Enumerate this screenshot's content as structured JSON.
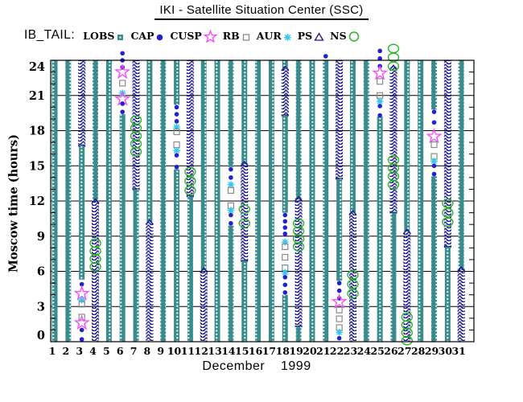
{
  "header": {
    "title": "IKI - Satellite Situation Center (SSC)"
  },
  "legend": {
    "label": "IB_TAIL:",
    "items": [
      {
        "name": "LOBS",
        "marker": "square-filled-small",
        "color": "#3a8c8c"
      },
      {
        "name": "CAP",
        "marker": "circle-filled",
        "color": "#2121cf"
      },
      {
        "name": "CUSP",
        "marker": "star-open",
        "color": "#f84ef8"
      },
      {
        "name": "RB",
        "marker": "square-open",
        "color": "#8a8a8a"
      },
      {
        "name": "AUR",
        "marker": "asterisk",
        "color": "#33c6ee"
      },
      {
        "name": "PS",
        "marker": "triangle-open",
        "color": "#16168c"
      },
      {
        "name": "NS",
        "marker": "circle-open",
        "color": "#28b428"
      }
    ]
  },
  "chart_data": {
    "type": "scatter",
    "title": "IKI - Satellite Situation Center (SSC)",
    "xlabel": "December    1999",
    "ylabel": "Moscow time (hours)",
    "ylim": [
      0,
      24
    ],
    "yticks": [
      0,
      3,
      6,
      9,
      12,
      15,
      18,
      21,
      24
    ],
    "xticks": [
      1,
      2,
      3,
      4,
      5,
      6,
      7,
      8,
      9,
      10,
      11,
      12,
      13,
      14,
      15,
      16,
      17,
      18,
      19,
      20,
      21,
      22,
      23,
      24,
      25,
      26,
      27,
      28,
      29,
      30,
      31
    ],
    "grid": "horizontal-3h",
    "legend_position": "top",
    "region_types": [
      "LOBS",
      "PS"
    ],
    "event_types": [
      "CAP",
      "CUSP",
      "RB",
      "AUR",
      "NS"
    ],
    "days": [
      {
        "day": 1,
        "segments": [
          [
            "LOBS",
            0,
            24
          ]
        ],
        "events": []
      },
      {
        "day": 2,
        "segments": [
          [
            "LOBS",
            0,
            24
          ]
        ],
        "events": []
      },
      {
        "day": 3,
        "segments": [
          [
            "PS",
            16.7,
            24
          ],
          [
            "LOBS",
            5.3,
            16.7
          ]
        ],
        "events": [
          [
            "CAP",
            4.6,
            5.2
          ],
          [
            "CUSP",
            4.1
          ],
          [
            "AUR",
            3.55
          ],
          [
            "RB",
            2.1,
            3.2
          ],
          [
            "CUSP",
            1.6
          ],
          [
            "CAP",
            0.2,
            1.0
          ]
        ]
      },
      {
        "day": 4,
        "segments": [
          [
            "LOBS",
            12,
            24
          ],
          [
            "PS",
            0,
            12
          ]
        ],
        "events": [
          [
            "NS",
            6.4,
            8.4
          ]
        ]
      },
      {
        "day": 5,
        "segments": [
          [
            "LOBS",
            0,
            24
          ]
        ],
        "events": []
      },
      {
        "day": 6,
        "segments": [
          [
            "LOBS",
            0,
            19.4
          ]
        ],
        "events": [
          [
            "CAP",
            23.4,
            24.6
          ],
          [
            "CUSP",
            23.0
          ],
          [
            "RB",
            21.6,
            22.5
          ],
          [
            "AUR",
            21.2
          ],
          [
            "CUSP",
            20.7
          ],
          [
            "CAP",
            19.6,
            20.3
          ]
        ]
      },
      {
        "day": 7,
        "segments": [
          [
            "PS",
            13,
            24
          ],
          [
            "LOBS",
            0,
            13
          ]
        ],
        "events": [
          [
            "NS",
            16.2,
            18.9
          ]
        ]
      },
      {
        "day": 8,
        "segments": [
          [
            "LOBS",
            10.2,
            24
          ],
          [
            "PS",
            0,
            10.2
          ]
        ],
        "events": []
      },
      {
        "day": 9,
        "segments": [
          [
            "LOBS",
            0,
            24
          ]
        ],
        "events": []
      },
      {
        "day": 10,
        "segments": [
          [
            "LOBS",
            20.2,
            24
          ],
          [
            "LOBS",
            0,
            14.7
          ]
        ],
        "events": [
          [
            "CAP",
            18.8,
            20.0
          ],
          [
            "AUR",
            18.3
          ],
          [
            "RB",
            16.8,
            17.9
          ],
          [
            "AUR",
            16.3
          ],
          [
            "CAP",
            14.9,
            15.9
          ]
        ]
      },
      {
        "day": 11,
        "segments": [
          [
            "PS",
            12.4,
            24
          ],
          [
            "LOBS",
            0,
            12.4
          ]
        ],
        "events": [
          [
            "NS",
            12.9,
            14.5
          ]
        ]
      },
      {
        "day": 12,
        "segments": [
          [
            "LOBS",
            6.1,
            24
          ],
          [
            "PS",
            0,
            6.1
          ]
        ],
        "events": []
      },
      {
        "day": 13,
        "segments": [
          [
            "LOBS",
            0,
            24
          ]
        ],
        "events": []
      },
      {
        "day": 14,
        "segments": [
          [
            "LOBS",
            14.9,
            24
          ],
          [
            "LOBS",
            0,
            9.9
          ]
        ],
        "events": [
          [
            "CAP",
            14.0,
            14.7
          ],
          [
            "AUR",
            13.4
          ],
          [
            "RB",
            11.6,
            12.9
          ],
          [
            "AUR",
            11.2
          ],
          [
            "CAP",
            10.1,
            10.8
          ]
        ]
      },
      {
        "day": 15,
        "segments": [
          [
            "LOBS",
            15.2,
            24
          ],
          [
            "PS",
            6.9,
            15.2
          ],
          [
            "LOBS",
            0,
            6.9
          ]
        ],
        "events": [
          [
            "NS",
            10.1,
            11.3
          ]
        ]
      },
      {
        "day": 16,
        "segments": [
          [
            "LOBS",
            0,
            24
          ]
        ],
        "events": []
      },
      {
        "day": 17,
        "segments": [
          [
            "LOBS",
            0,
            24
          ]
        ],
        "events": []
      },
      {
        "day": 18,
        "segments": [
          [
            "LOBS",
            23.3,
            24
          ],
          [
            "PS",
            19.3,
            23.3
          ],
          [
            "LOBS",
            11,
            19.3
          ],
          [
            "LOBS",
            0,
            4.0
          ]
        ],
        "events": [
          [
            "CAP",
            9.2,
            10.8
          ],
          [
            "AUR",
            8.5
          ],
          [
            "RB",
            6.3,
            8.1
          ],
          [
            "AUR",
            5.9
          ],
          [
            "CAP",
            4.2,
            5.5
          ]
        ]
      },
      {
        "day": 19,
        "segments": [
          [
            "LOBS",
            12.2,
            24
          ],
          [
            "PS",
            1.3,
            12.2
          ],
          [
            "LOBS",
            0,
            1.3
          ]
        ],
        "events": [
          [
            "NS",
            8.1,
            10.1
          ]
        ]
      },
      {
        "day": 20,
        "segments": [
          [
            "LOBS",
            0,
            24
          ]
        ],
        "events": []
      },
      {
        "day": 21,
        "segments": [
          [
            "LOBS",
            0,
            24
          ]
        ],
        "events": [
          [
            "CAP",
            24.2,
            24.5
          ]
        ]
      },
      {
        "day": 22,
        "segments": [
          [
            "PS",
            13.9,
            24
          ],
          [
            "LOBS",
            5.2,
            13.9
          ]
        ],
        "events": [
          [
            "CAP",
            3.7,
            5.0
          ],
          [
            "CUSP",
            3.4
          ],
          [
            "RB",
            1.2,
            2.7
          ],
          [
            "AUR",
            0.8
          ],
          [
            "CAP",
            0.1,
            0.5
          ]
        ]
      },
      {
        "day": 23,
        "segments": [
          [
            "LOBS",
            11,
            24
          ],
          [
            "PS",
            0,
            11
          ]
        ],
        "events": [
          [
            "NS",
            4.1,
            5.7
          ]
        ]
      },
      {
        "day": 24,
        "segments": [
          [
            "LOBS",
            0,
            24
          ]
        ],
        "events": []
      },
      {
        "day": 25,
        "segments": [
          [
            "LOBS",
            0,
            19.2
          ]
        ],
        "events": [
          [
            "CAP",
            23.5,
            24.8
          ],
          [
            "CUSP",
            22.9
          ],
          [
            "RB",
            21.0,
            22.2
          ],
          [
            "AUR",
            20.5
          ],
          [
            "CAP",
            19.3,
            20.1
          ]
        ]
      },
      {
        "day": 26,
        "segments": [
          [
            "PS",
            11,
            23.4
          ],
          [
            "LOBS",
            0,
            11
          ]
        ],
        "events": [
          [
            "NS",
            13.4,
            15.5
          ],
          [
            "NS",
            23.5,
            25.0
          ]
        ]
      },
      {
        "day": 27,
        "segments": [
          [
            "LOBS",
            9.4,
            24
          ],
          [
            "PS",
            0,
            9.4
          ]
        ],
        "events": [
          [
            "NS",
            0.1,
            2.1
          ]
        ]
      },
      {
        "day": 28,
        "segments": [
          [
            "LOBS",
            0,
            24
          ]
        ],
        "events": []
      },
      {
        "day": 29,
        "segments": [
          [
            "LOBS",
            19.8,
            24
          ],
          [
            "LOBS",
            0,
            14.1
          ]
        ],
        "events": [
          [
            "CAP",
            18.7,
            19.6
          ],
          [
            "CUSP",
            17.5
          ],
          [
            "RB",
            15.8,
            16.8
          ],
          [
            "AUR",
            15.4
          ],
          [
            "CAP",
            14.3,
            15.0
          ]
        ]
      },
      {
        "day": 30,
        "segments": [
          [
            "PS",
            8.1,
            24
          ],
          [
            "LOBS",
            0,
            8.1
          ]
        ],
        "events": [
          [
            "NS",
            10.2,
            11.8
          ]
        ]
      },
      {
        "day": 31,
        "segments": [
          [
            "LOBS",
            6.2,
            24
          ],
          [
            "PS",
            0,
            6.2
          ]
        ],
        "events": []
      }
    ]
  }
}
